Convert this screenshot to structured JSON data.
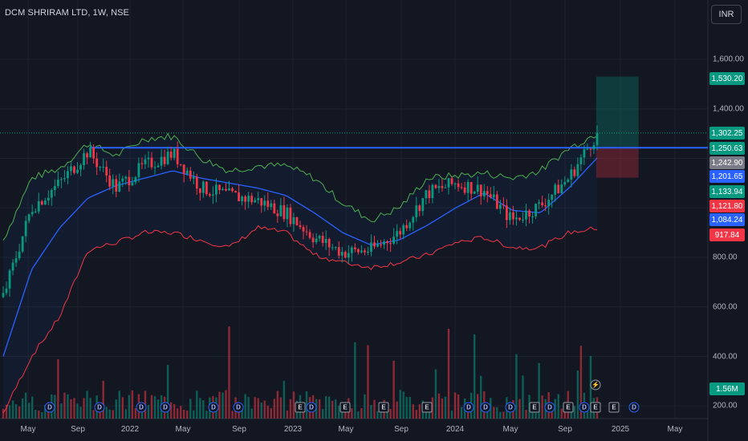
{
  "header": {
    "title": "DCM SHRIRAM LTD, 1W, NSE",
    "currency": "INR"
  },
  "price_axis": {
    "ticks": [
      "1,600.00",
      "1,400.00",
      "800.00",
      "600.00",
      "400.00",
      "200.00"
    ]
  },
  "badges": [
    {
      "text": "1,530.20",
      "color": "#089981"
    },
    {
      "text": "1,302.25",
      "color": "#089981"
    },
    {
      "text": "1,250.63",
      "color": "#089981"
    },
    {
      "text": "1,242.90",
      "color": "#787b86"
    },
    {
      "text": "1,201.65",
      "color": "#2962ff"
    },
    {
      "text": "1,133.94",
      "color": "#089981"
    },
    {
      "text": "1,121.80",
      "color": "#f23645"
    },
    {
      "text": "1,084.24",
      "color": "#2962ff"
    },
    {
      "text": "917.84",
      "color": "#f23645"
    },
    {
      "text": "1.56M",
      "color": "#089981"
    }
  ],
  "time_axis": {
    "labels": [
      "May",
      "Sep",
      "2022",
      "May",
      "Sep",
      "2023",
      "May",
      "Sep",
      "2024",
      "May",
      "Sep",
      "2025",
      "May"
    ]
  },
  "markers": [
    {
      "text": "D"
    },
    {
      "text": "D"
    },
    {
      "text": "D"
    },
    {
      "text": "D"
    },
    {
      "text": "D"
    },
    {
      "text": "D"
    },
    {
      "text": "E"
    },
    {
      "text": "D"
    },
    {
      "text": "E"
    },
    {
      "text": "E"
    },
    {
      "text": "E"
    },
    {
      "text": "D"
    },
    {
      "text": "D"
    },
    {
      "text": "D"
    },
    {
      "text": "E"
    },
    {
      "text": "D"
    },
    {
      "text": "E"
    },
    {
      "text": "D"
    },
    {
      "text": "E"
    },
    {
      "text": "D"
    },
    {
      "text": "E"
    },
    {
      "text": "⚡"
    }
  ],
  "chart_data": {
    "type": "line",
    "symbol": "DCM SHRIRAM LTD",
    "interval": "1W",
    "exchange": "NSE",
    "currency": "INR",
    "y_range": [
      150,
      1720
    ],
    "x_range": [
      "2021-04-01",
      "2025-06-15"
    ],
    "resistance_level": 1242.9,
    "position_tool": {
      "entry": 1242.9,
      "target": 1530.2,
      "stop": 1121.8,
      "start": "2024-10-14",
      "end": "2025-01-15"
    },
    "series": [
      {
        "name": "price",
        "x": [
          "2021-04",
          "2021-06",
          "2021-08",
          "2021-10",
          "2021-12",
          "2022-02",
          "2022-04",
          "2022-06",
          "2022-08",
          "2022-10",
          "2022-12",
          "2023-02",
          "2023-04",
          "2023-06",
          "2023-08",
          "2023-10",
          "2023-12",
          "2024-02",
          "2024-04",
          "2024-06",
          "2024-08",
          "2024-10"
        ],
        "y": [
          640,
          1000,
          1100,
          1230,
          1080,
          1170,
          1220,
          1080,
          1050,
          1030,
          980,
          880,
          820,
          830,
          900,
          1060,
          1100,
          1070,
          950,
          1010,
          1120,
          1302.25
        ]
      },
      {
        "name": "bb_upper",
        "y": [
          870,
          1120,
          1160,
          1260,
          1210,
          1280,
          1290,
          1200,
          1150,
          1170,
          1170,
          1120,
          1020,
          950,
          1000,
          1120,
          1130,
          1140,
          1120,
          1150,
          1240,
          1302.25
        ]
      },
      {
        "name": "bb_basis",
        "y": [
          400,
          750,
          920,
          1040,
          1090,
          1120,
          1150,
          1120,
          1100,
          1080,
          1050,
          980,
          900,
          850,
          870,
          930,
          1000,
          1060,
          990,
          980,
          1080,
          1201.65
        ]
      },
      {
        "name": "bb_lower",
        "y": [
          170,
          400,
          560,
          830,
          860,
          900,
          900,
          870,
          840,
          920,
          900,
          810,
          780,
          760,
          780,
          810,
          860,
          880,
          840,
          840,
          900,
          917.84
        ]
      }
    ],
    "last_volume": "1.56M"
  }
}
